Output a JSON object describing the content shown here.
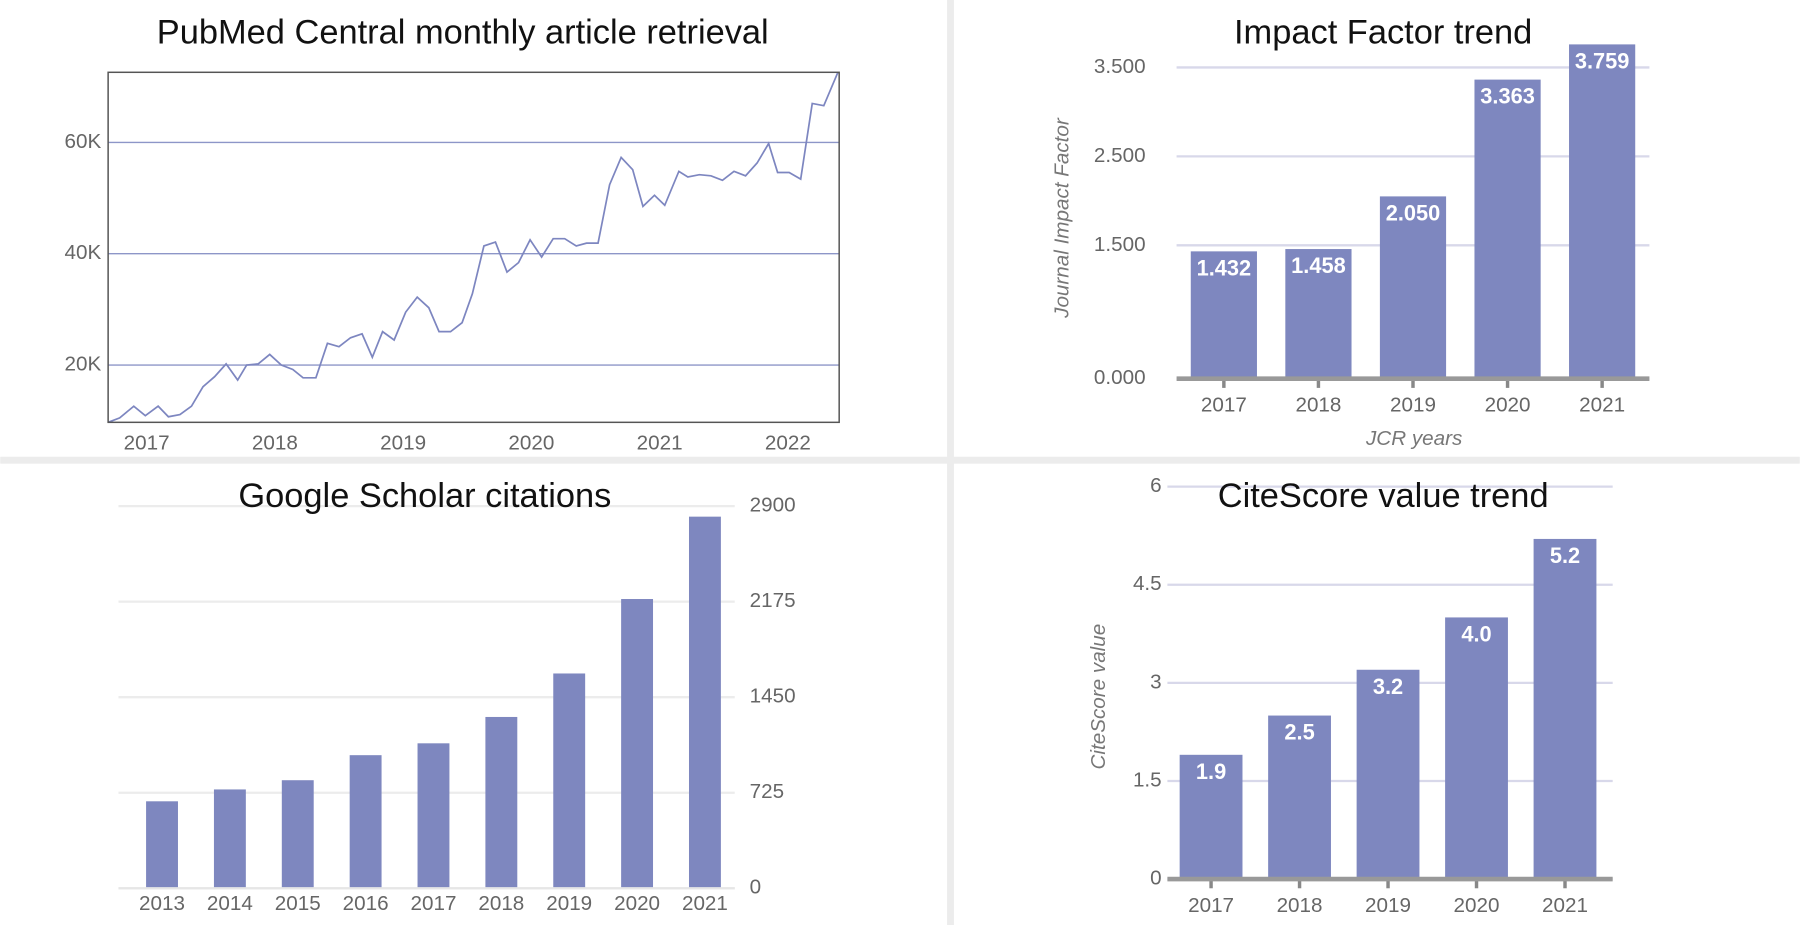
{
  "chart_data": [
    {
      "type": "line",
      "title": "PubMed Central monthly article retrieval",
      "color": "#7d86c0",
      "grid": true,
      "x": [
        2016.7,
        2016.79,
        2016.9,
        2016.99,
        2017.09,
        2017.17,
        2017.26,
        2017.35,
        2017.44,
        2017.53,
        2017.62,
        2017.71,
        2017.78,
        2017.87,
        2017.96,
        2018.05,
        2018.14,
        2018.22,
        2018.32,
        2018.41,
        2018.5,
        2018.59,
        2018.68,
        2018.76,
        2018.84,
        2018.93,
        2019.02,
        2019.11,
        2019.2,
        2019.28,
        2019.37,
        2019.46,
        2019.54,
        2019.63,
        2019.72,
        2019.81,
        2019.9,
        2019.99,
        2020.08,
        2020.17,
        2020.26,
        2020.35,
        2020.43,
        2020.52,
        2020.61,
        2020.7,
        2020.79,
        2020.87,
        2020.96,
        2021.04,
        2021.15,
        2021.22,
        2021.31,
        2021.4,
        2021.49,
        2021.58,
        2021.67,
        2021.76,
        2021.85,
        2021.92,
        2022.01,
        2022.1,
        2022.19,
        2022.28,
        2022.39
      ],
      "values": [
        9700,
        10500,
        12600,
        10900,
        12600,
        10700,
        11100,
        12600,
        16100,
        17900,
        20200,
        17300,
        20000,
        20200,
        21900,
        20000,
        19200,
        17700,
        17700,
        23900,
        23300,
        24900,
        25600,
        21400,
        26000,
        24500,
        29500,
        32200,
        30300,
        26000,
        26000,
        27600,
        32800,
        41400,
        42100,
        36700,
        38400,
        42500,
        39400,
        42700,
        42700,
        41400,
        41900,
        41900,
        52400,
        57300,
        55100,
        48500,
        50500,
        48700,
        54800,
        53800,
        54200,
        54000,
        53200,
        54800,
        54000,
        56300,
        59800,
        54600,
        54600,
        53400,
        67000,
        66600,
        72600
      ],
      "xlim": [
        2016.7,
        2022.4
      ],
      "xticks": [
        2017,
        2018,
        2019,
        2020,
        2021,
        2022
      ],
      "ylim": [
        9700,
        72600
      ],
      "yticks": [
        {
          "value": 20000,
          "label": "20K"
        },
        {
          "value": 40000,
          "label": "40K"
        },
        {
          "value": 60000,
          "label": "60K"
        }
      ]
    },
    {
      "type": "bar",
      "title": "Impact Factor trend",
      "y_label": "Journal Impact Factor",
      "x_label": "JCR years",
      "color": "#7e87bf",
      "grid": true,
      "categories": [
        "2017",
        "2018",
        "2019",
        "2020",
        "2021"
      ],
      "values": [
        1.432,
        1.458,
        2.05,
        3.363,
        3.759
      ],
      "value_labels": [
        "1.432",
        "1.458",
        "2.050",
        "3.363",
        "3.759"
      ],
      "ylim": [
        0,
        3.8
      ],
      "yticks": [
        {
          "value": 0,
          "label": "0.000"
        },
        {
          "value": 1.5,
          "label": "1.500"
        },
        {
          "value": 2.5,
          "label": "2.500"
        },
        {
          "value": 3.5,
          "label": "3.500"
        }
      ]
    },
    {
      "type": "bar",
      "title": "Google Scholar citations",
      "color": "#7e87bf",
      "grid": true,
      "y_axis_side": "right",
      "categories": [
        "2013",
        "2014",
        "2015",
        "2016",
        "2017",
        "2018",
        "2019",
        "2020",
        "2021"
      ],
      "values": [
        660,
        750,
        820,
        1010,
        1100,
        1300,
        1630,
        2195,
        2820
      ],
      "ylim": [
        0,
        2900
      ],
      "yticks": [
        0,
        725,
        1450,
        2175,
        2900
      ]
    },
    {
      "type": "bar",
      "title": "CiteScore value trend",
      "y_label": "CiteScore value",
      "color": "#7e87bf",
      "grid": true,
      "categories": [
        "2017",
        "2018",
        "2019",
        "2020",
        "2021"
      ],
      "values": [
        1.9,
        2.5,
        3.2,
        4.0,
        5.2
      ],
      "value_labels": [
        "1.9",
        "2.5",
        "3.2",
        "4.0",
        "5.2"
      ],
      "ylim": [
        0,
        6
      ],
      "yticks": [
        0,
        1.5,
        3,
        4.5,
        6
      ]
    }
  ]
}
